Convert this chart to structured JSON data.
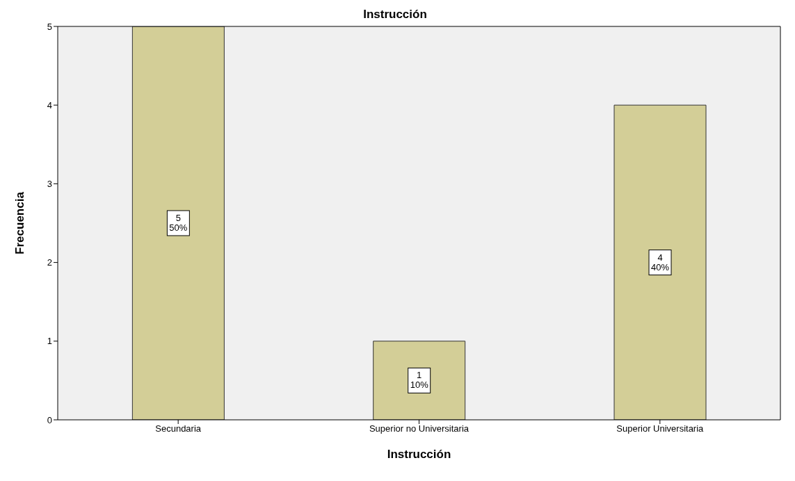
{
  "chart_data": {
    "type": "bar",
    "title": "Instrucción",
    "xlabel": "Instrucción",
    "ylabel": "Frecuencia",
    "categories": [
      "Secundaria",
      "Superior no Universitaria",
      "Superior Universitaria"
    ],
    "values": [
      5,
      1,
      4
    ],
    "color": "#d3ce97",
    "value_labels": [
      "5\n50%",
      "1\n10%",
      "4\n40%"
    ],
    "ylim": [
      0,
      5
    ],
    "yticks": [
      0,
      1,
      2,
      3,
      4,
      5
    ],
    "grid": false
  }
}
